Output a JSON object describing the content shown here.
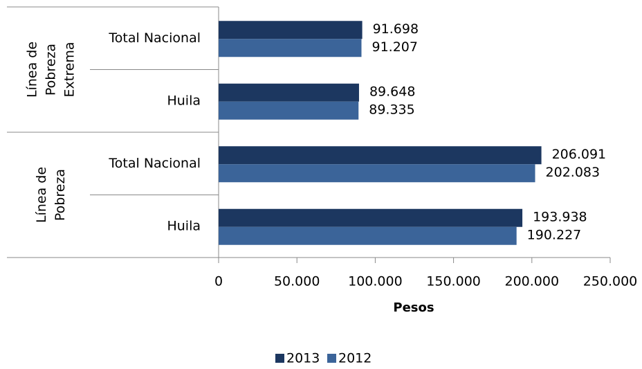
{
  "chart_data": {
    "type": "bar",
    "orientation": "horizontal",
    "x_label": "Pesos",
    "groups": [
      {
        "label": [
          "Línea de",
          "Pobreza",
          "Extrema"
        ],
        "categories": [
          "Total Nacional",
          "Huila"
        ]
      },
      {
        "label": [
          "Línea de",
          "Pobreza"
        ],
        "categories": [
          "Total Nacional",
          "Huila"
        ]
      }
    ],
    "series": [
      {
        "name": "2013",
        "color": "#1c3760",
        "values": [
          91698,
          89648,
          206091,
          193938
        ],
        "value_labels": [
          "91.698",
          "89.648",
          "206.091",
          "193.938"
        ]
      },
      {
        "name": "2012",
        "color": "#3b6499",
        "values": [
          91207,
          89335,
          202083,
          190227
        ],
        "value_labels": [
          "91.207",
          "89.335",
          "202.083",
          "190.227"
        ]
      }
    ],
    "xlim": [
      0,
      250000
    ],
    "xticks": [
      0,
      {
        "value": 50000,
        "label": "50.000"
      },
      {
        "value": 100000,
        "label": "100.000"
      },
      {
        "value": 150000,
        "label": "150.000"
      },
      {
        "value": 200000,
        "label": "200.000"
      },
      {
        "value": 250000,
        "label": "250.000"
      }
    ],
    "legend": "bottom"
  }
}
